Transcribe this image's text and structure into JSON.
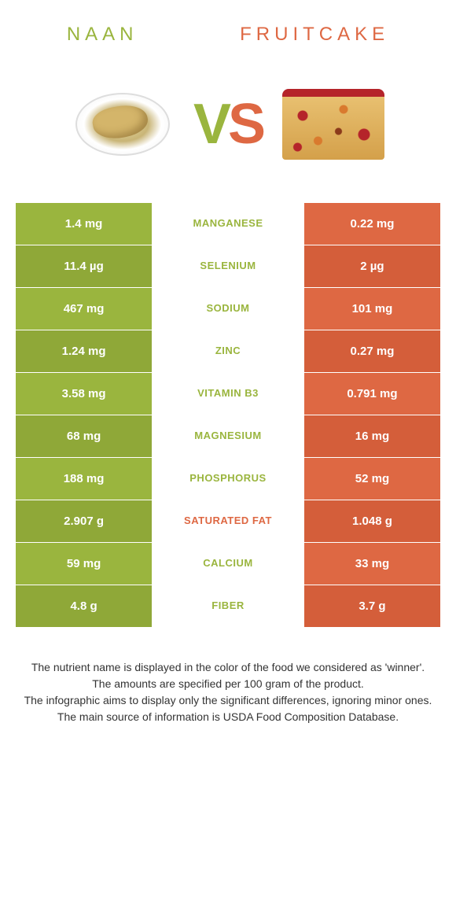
{
  "colors": {
    "left": "#9ab53e",
    "left_alt": "#8fa838",
    "right": "#de6843",
    "right_alt": "#d45e3a",
    "text": "#333333",
    "bg": "#ffffff"
  },
  "foods": {
    "left": {
      "name": "NAAN"
    },
    "right": {
      "name": "FRUITCAKE"
    }
  },
  "vs": {
    "v": "V",
    "s": "S"
  },
  "rows": [
    {
      "nutrient": "Manganese",
      "left": "1.4 mg",
      "right": "0.22 mg",
      "winner": "left"
    },
    {
      "nutrient": "Selenium",
      "left": "11.4 µg",
      "right": "2 µg",
      "winner": "left"
    },
    {
      "nutrient": "Sodium",
      "left": "467 mg",
      "right": "101 mg",
      "winner": "left"
    },
    {
      "nutrient": "Zinc",
      "left": "1.24 mg",
      "right": "0.27 mg",
      "winner": "left"
    },
    {
      "nutrient": "Vitamin B3",
      "left": "3.58 mg",
      "right": "0.791 mg",
      "winner": "left"
    },
    {
      "nutrient": "Magnesium",
      "left": "68 mg",
      "right": "16 mg",
      "winner": "left"
    },
    {
      "nutrient": "Phosphorus",
      "left": "188 mg",
      "right": "52 mg",
      "winner": "left"
    },
    {
      "nutrient": "Saturated fat",
      "left": "2.907 g",
      "right": "1.048 g",
      "winner": "right"
    },
    {
      "nutrient": "Calcium",
      "left": "59 mg",
      "right": "33 mg",
      "winner": "left"
    },
    {
      "nutrient": "Fiber",
      "left": "4.8 g",
      "right": "3.7 g",
      "winner": "left"
    }
  ],
  "footer": [
    "The nutrient name is displayed in the color of the food we considered as 'winner'.",
    "The amounts are specified per 100 gram of the product.",
    "The infographic aims to display only the significant differences, ignoring minor ones.",
    "The main source of information is USDA Food Composition Database."
  ]
}
